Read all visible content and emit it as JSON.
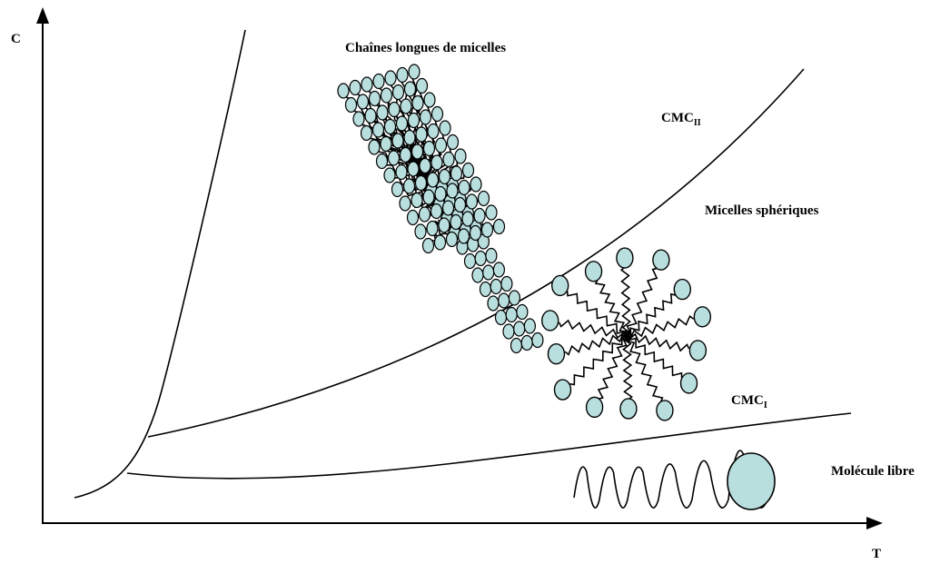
{
  "axes": {
    "y_label": "C",
    "x_label": "T"
  },
  "regions": {
    "long_chains": "Chaînes longues de micelles",
    "spherical": "Micelles sphériques",
    "free": "Molécule libre"
  },
  "curves": {
    "cmc2": {
      "text": "CMC",
      "sub": "II"
    },
    "cmc1": {
      "text": "CMC",
      "sub": "I"
    }
  }
}
